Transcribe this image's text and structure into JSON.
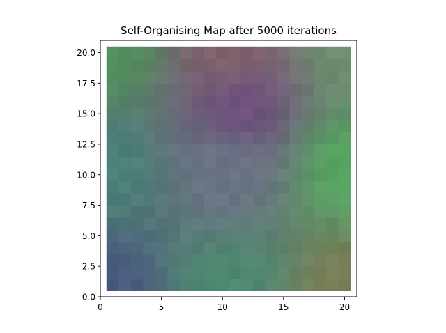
{
  "chart_data": {
    "type": "heatmap",
    "title": "Self-Organising Map after 5000 iterations",
    "xlabel": "",
    "ylabel": "",
    "xlim": [
      0,
      21
    ],
    "ylim": [
      0,
      21
    ],
    "extent": [
      0.5,
      20.5,
      0.5,
      20.5
    ],
    "grid": false,
    "x_ticks": [
      0,
      5,
      10,
      15,
      20
    ],
    "x_tick_labels": [
      "0",
      "5",
      "10",
      "15",
      "20"
    ],
    "y_ticks": [
      0,
      2.5,
      5,
      7.5,
      10,
      12.5,
      15,
      17.5,
      20
    ],
    "y_tick_labels": [
      "0.0",
      "2.5",
      "5.0",
      "7.5",
      "10.0",
      "12.5",
      "15.0",
      "17.5",
      "20.0"
    ],
    "grid_size": [
      20,
      20
    ],
    "corner_colors": {
      "top_left": "#4f8f5a",
      "top_center": "#83606b",
      "top_right": "#6f8f6f",
      "center": "#6a7485",
      "upper_center": "#6f4f7f",
      "left_center": "#4a8078",
      "bottom_left": "#4a5a80",
      "bottom_center": "#4c8a70",
      "bottom_right": "#7a7d55",
      "right_center": "#55a660"
    }
  }
}
